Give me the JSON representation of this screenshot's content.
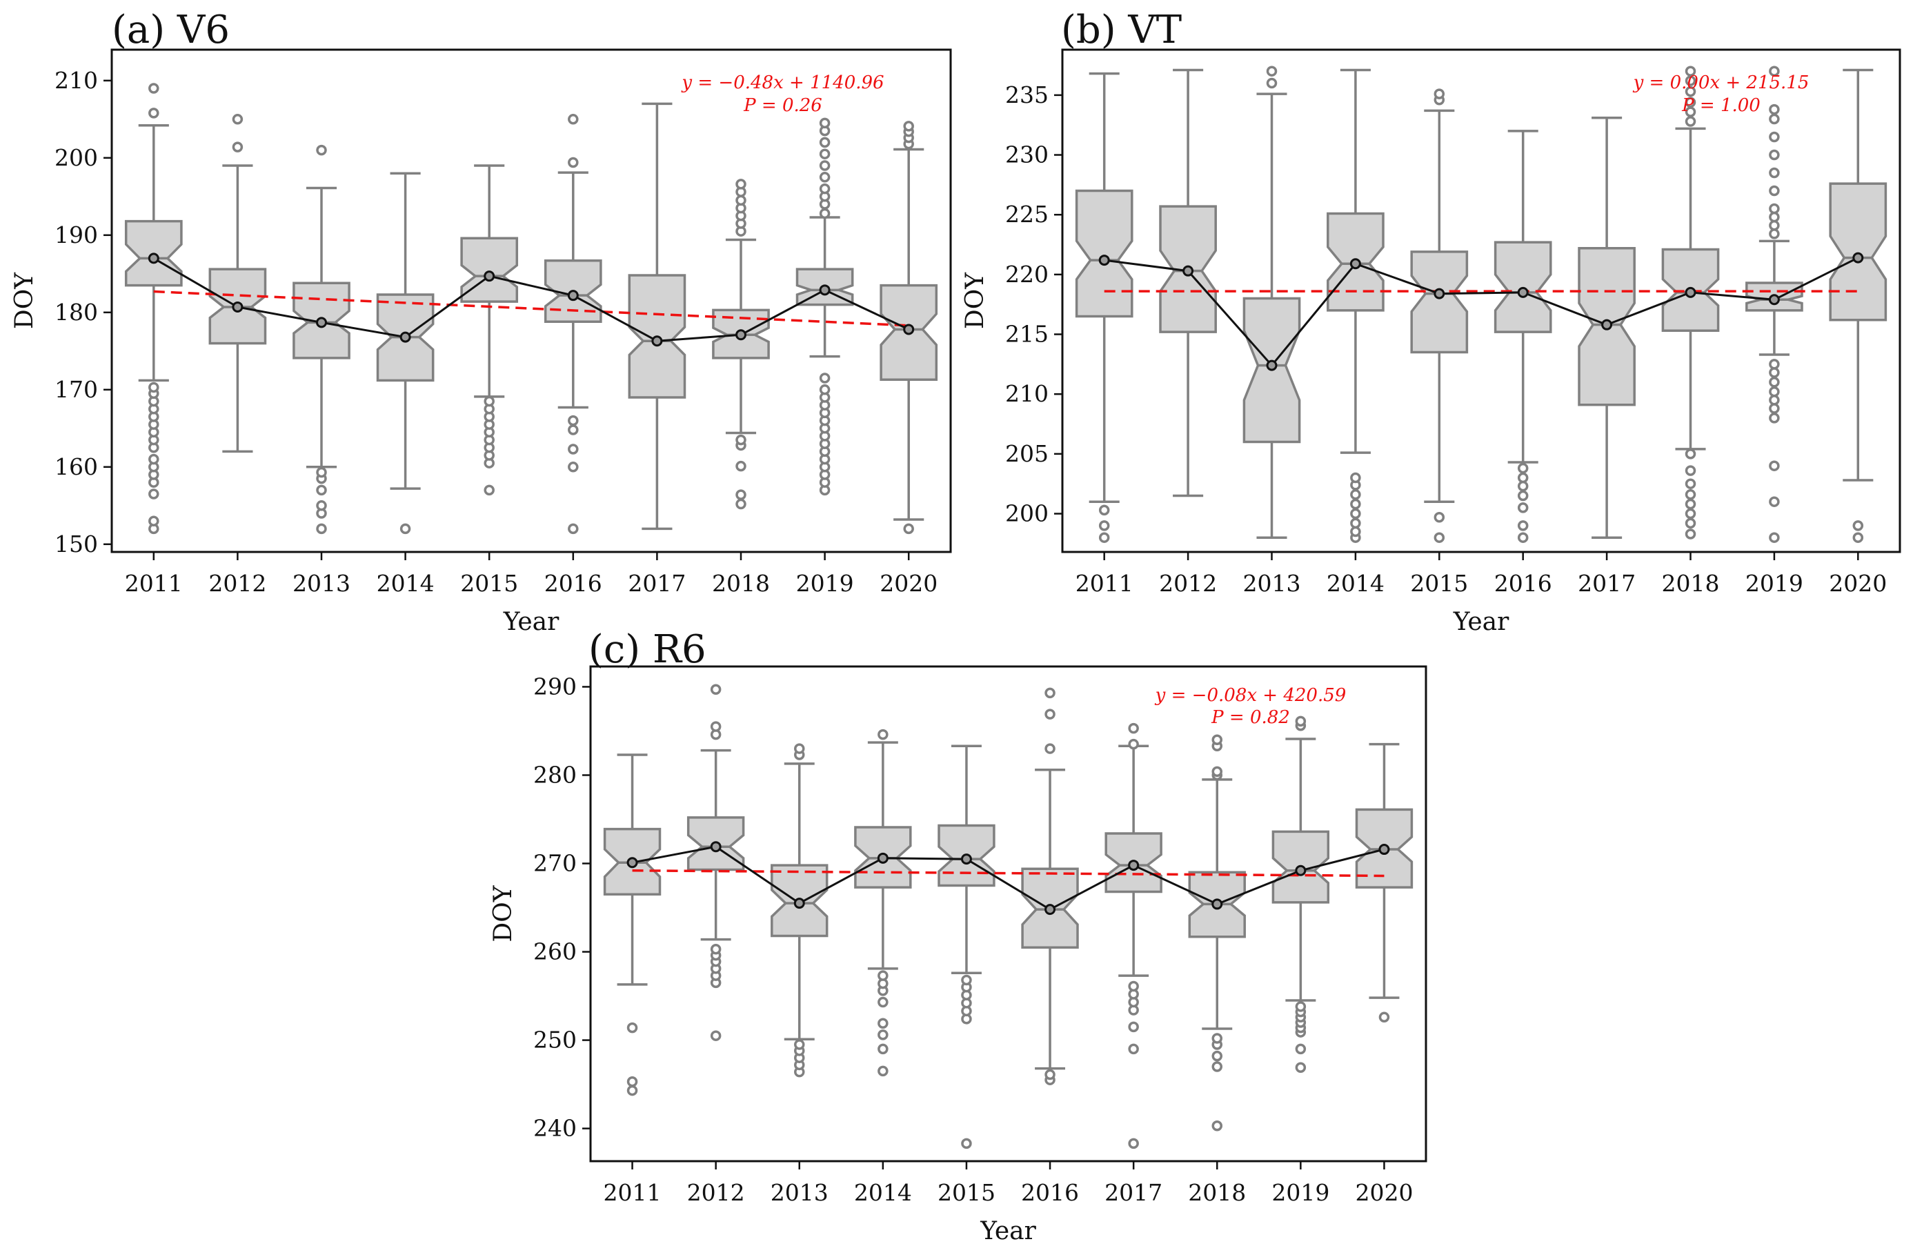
{
  "chart_data": [
    {
      "type": "box",
      "title": "(a) V6",
      "xlabel": "Year",
      "ylabel": "DOY",
      "categories": [
        "2011",
        "2012",
        "2013",
        "2014",
        "2015",
        "2016",
        "2017",
        "2018",
        "2019",
        "2020"
      ],
      "ylim": [
        149,
        214
      ],
      "yticks": [
        150,
        160,
        170,
        180,
        190,
        200,
        210
      ],
      "medians": [
        187,
        180.7,
        178.7,
        176.8,
        184.7,
        182.2,
        176.3,
        177.1,
        182.9,
        177.8
      ],
      "boxes": [
        {
          "q1": 183.5,
          "q3": 191.8,
          "whislo": 171.2,
          "whishi": 204.2,
          "notchlo": 185.3,
          "notchhi": 188.8,
          "fliers": [
            152,
            153,
            156.5,
            158,
            159,
            160,
            161,
            162.5,
            163.5,
            164.5,
            165.5,
            166.5,
            167.5,
            168.5,
            169.5,
            170.3,
            205.8,
            209
          ]
        },
        {
          "q1": 176,
          "q3": 185.6,
          "whislo": 162,
          "whishi": 199,
          "notchlo": 179.3,
          "notchhi": 182.1,
          "fliers": [
            201.4,
            205
          ]
        },
        {
          "q1": 174.1,
          "q3": 183.8,
          "whislo": 160,
          "whishi": 196.1,
          "notchlo": 177.3,
          "notchhi": 180.2,
          "fliers": [
            152,
            154,
            155,
            157,
            158.5,
            159.3,
            201
          ]
        },
        {
          "q1": 171.2,
          "q3": 182.3,
          "whislo": 157.2,
          "whishi": 198,
          "notchlo": 175.2,
          "notchhi": 178.5,
          "fliers": [
            152
          ]
        },
        {
          "q1": 181.4,
          "q3": 189.6,
          "whislo": 169.1,
          "whishi": 199,
          "notchlo": 183.3,
          "notchhi": 186.1,
          "fliers": [
            157,
            160.5,
            161.5,
            162.5,
            163.5,
            164.5,
            165.5,
            166.5,
            167.5,
            168.5
          ]
        },
        {
          "q1": 178.8,
          "q3": 186.7,
          "whislo": 167.7,
          "whishi": 198.1,
          "notchlo": 180.8,
          "notchhi": 183.6,
          "fliers": [
            152,
            160,
            162.3,
            164.8,
            166,
            199.4,
            205
          ]
        },
        {
          "q1": 169,
          "q3": 184.8,
          "whislo": 152,
          "whishi": 207,
          "notchlo": 174.5,
          "notchhi": 178.1,
          "fliers": []
        },
        {
          "q1": 174.1,
          "q3": 180.3,
          "whislo": 164.4,
          "whishi": 189.4,
          "notchlo": 176.2,
          "notchhi": 178,
          "fliers": [
            155.2,
            156.4,
            160.1,
            162.8,
            163.5,
            190.5,
            191.5,
            192.5,
            193.5,
            194.5,
            195.6,
            196.6
          ]
        },
        {
          "q1": 181,
          "q3": 185.6,
          "whislo": 174.3,
          "whishi": 192.3,
          "notchlo": 182.3,
          "notchhi": 183.5,
          "fliers": [
            157,
            158,
            159,
            160,
            161,
            162,
            163,
            164,
            165,
            166,
            167,
            168,
            169,
            170,
            171.5,
            192.8,
            194,
            195,
            196,
            197.5,
            199,
            200.5,
            202,
            203.5,
            204.5
          ]
        },
        {
          "q1": 171.3,
          "q3": 183.5,
          "whislo": 153.2,
          "whishi": 201.1,
          "notchlo": 175.8,
          "notchhi": 179.8,
          "fliers": [
            152,
            201.8,
            202.6,
            203.4,
            204.1
          ]
        }
      ],
      "mean_line": [
        187,
        180.7,
        178.7,
        176.8,
        184.7,
        182.2,
        176.3,
        177.1,
        182.9,
        177.8
      ],
      "trend": {
        "start": 182.7,
        "end": 178.3
      },
      "annotation": [
        "y = −0.48x + 1140.96",
        "P = 0.26"
      ]
    },
    {
      "type": "box",
      "title": "(b) VT",
      "xlabel": "Year",
      "ylabel": "DOY",
      "categories": [
        "2011",
        "2012",
        "2013",
        "2014",
        "2015",
        "2016",
        "2017",
        "2018",
        "2019",
        "2020"
      ],
      "ylim": [
        196.8,
        238.8
      ],
      "yticks": [
        200,
        205,
        210,
        215,
        220,
        225,
        230,
        235
      ],
      "medians": [
        221.2,
        220.3,
        212.4,
        220.9,
        218.4,
        218.5,
        215.8,
        218.5,
        217.9,
        221.4
      ],
      "boxes": [
        {
          "q1": 216.5,
          "q3": 227,
          "whislo": 201,
          "whishi": 236.8,
          "notchlo": 219.6,
          "notchhi": 222.8,
          "fliers": [
            198,
            199,
            200.3
          ]
        },
        {
          "q1": 215.2,
          "q3": 225.7,
          "whislo": 201.5,
          "whishi": 237.1,
          "notchlo": 218.6,
          "notchhi": 222,
          "fliers": []
        },
        {
          "q1": 206,
          "q3": 218,
          "whislo": 198,
          "whishi": 235.1,
          "notchlo": 209.5,
          "notchhi": 215.3,
          "fliers": [
            236,
            237
          ]
        },
        {
          "q1": 217,
          "q3": 225.1,
          "whislo": 205.1,
          "whishi": 237.1,
          "notchlo": 219.5,
          "notchhi": 222.3,
          "fliers": [
            198,
            198.5,
            199.2,
            200,
            200.8,
            201.6,
            202.4,
            203
          ]
        },
        {
          "q1": 213.5,
          "q3": 221.9,
          "whislo": 201,
          "whishi": 233.7,
          "notchlo": 216.9,
          "notchhi": 219.9,
          "fliers": [
            198,
            199.7,
            234.6,
            235.1
          ]
        },
        {
          "q1": 215.2,
          "q3": 222.7,
          "whislo": 204.3,
          "whishi": 232,
          "notchlo": 217,
          "notchhi": 220,
          "fliers": [
            198,
            199,
            200.5,
            201.5,
            202.3,
            203,
            203.8
          ]
        },
        {
          "q1": 209.1,
          "q3": 222.2,
          "whislo": 198,
          "whishi": 233.1,
          "notchlo": 214,
          "notchhi": 217.6,
          "fliers": []
        },
        {
          "q1": 215.3,
          "q3": 222.1,
          "whislo": 205.4,
          "whishi": 232.2,
          "notchlo": 217.4,
          "notchhi": 219.6,
          "fliers": [
            198.3,
            199.2,
            200,
            200.8,
            201.6,
            202.5,
            203.6,
            205,
            232.8,
            233.6,
            234.4,
            235.3,
            236.2,
            237
          ]
        },
        {
          "q1": 217,
          "q3": 219.3,
          "whislo": 213.3,
          "whishi": 222.8,
          "notchlo": 217.6,
          "notchhi": 218.2,
          "fliers": [
            198,
            201,
            204,
            208,
            208.8,
            209.5,
            210.2,
            211,
            211.8,
            212.5,
            223.4,
            224.1,
            224.8,
            225.5,
            227,
            228.5,
            230,
            231.5,
            233,
            233.8,
            237
          ]
        },
        {
          "q1": 216.2,
          "q3": 227.6,
          "whislo": 202.8,
          "whishi": 237.1,
          "notchlo": 219.6,
          "notchhi": 223.2,
          "fliers": [
            198,
            199
          ]
        }
      ],
      "mean_line": [
        221.2,
        220.3,
        212.4,
        220.9,
        218.4,
        218.5,
        215.8,
        218.5,
        217.9,
        221.4
      ],
      "trend": {
        "start": 218.6,
        "end": 218.6
      },
      "annotation": [
        "y = 0.00x + 215.15",
        "P = 1.00"
      ]
    },
    {
      "type": "box",
      "title": "(c) R6",
      "xlabel": "Year",
      "ylabel": "DOY",
      "categories": [
        "2011",
        "2012",
        "2013",
        "2014",
        "2015",
        "2016",
        "2017",
        "2018",
        "2019",
        "2020"
      ],
      "ylim": [
        236.3,
        292.3
      ],
      "yticks": [
        240,
        250,
        260,
        270,
        280,
        290
      ],
      "medians": [
        270.1,
        271.9,
        265.5,
        270.6,
        270.5,
        264.8,
        269.8,
        265.4,
        269.2,
        271.6
      ],
      "boxes": [
        {
          "q1": 266.5,
          "q3": 273.9,
          "whislo": 256.3,
          "whishi": 282.3,
          "notchlo": 268.5,
          "notchhi": 271.6,
          "fliers": [
            244.3,
            245.3,
            251.4
          ]
        },
        {
          "q1": 269.3,
          "q3": 275.2,
          "whislo": 261.4,
          "whishi": 282.8,
          "notchlo": 270.6,
          "notchhi": 273.2,
          "fliers": [
            250.5,
            256.5,
            257.3,
            258.1,
            258.9,
            259.6,
            260.3,
            284.6,
            285.5,
            289.7
          ]
        },
        {
          "q1": 261.8,
          "q3": 269.8,
          "whislo": 250.1,
          "whishi": 281.3,
          "notchlo": 264,
          "notchhi": 267,
          "fliers": [
            246.4,
            247.2,
            248,
            248.8,
            249.5,
            282.3,
            283
          ]
        },
        {
          "q1": 267.3,
          "q3": 274.1,
          "whislo": 258.1,
          "whishi": 283.7,
          "notchlo": 269.2,
          "notchhi": 272,
          "fliers": [
            246.5,
            249,
            250.6,
            251.9,
            254.3,
            255.6,
            256.4,
            257.3,
            284.6
          ]
        },
        {
          "q1": 267.5,
          "q3": 274.3,
          "whislo": 257.6,
          "whishi": 283.3,
          "notchlo": 269.1,
          "notchhi": 271.9,
          "fliers": [
            238.3,
            252.4,
            253.3,
            254.2,
            255.1,
            256,
            256.8
          ]
        },
        {
          "q1": 260.5,
          "q3": 269.4,
          "whislo": 246.8,
          "whishi": 280.6,
          "notchlo": 263.1,
          "notchhi": 266.5,
          "fliers": [
            245.5,
            246.1,
            283,
            286.9,
            289.3
          ]
        },
        {
          "q1": 266.8,
          "q3": 273.4,
          "whislo": 257.3,
          "whishi": 283.3,
          "notchlo": 268.6,
          "notchhi": 271,
          "fliers": [
            238.3,
            249,
            251.5,
            253.4,
            254.3,
            255.2,
            256.1,
            283.5,
            285.3
          ]
        },
        {
          "q1": 261.7,
          "q3": 269,
          "whislo": 251.3,
          "whishi": 279.5,
          "notchlo": 264.1,
          "notchhi": 266.7,
          "fliers": [
            240.3,
            247,
            248.2,
            249.5,
            250.2,
            280,
            280.4,
            283.3,
            284
          ]
        },
        {
          "q1": 265.6,
          "q3": 273.6,
          "whislo": 254.5,
          "whishi": 284.1,
          "notchlo": 267.8,
          "notchhi": 270.6,
          "fliers": [
            246.9,
            249,
            250.9,
            251.4,
            252,
            252.6,
            253.2,
            253.8,
            285.6,
            286.1
          ]
        },
        {
          "q1": 267.3,
          "q3": 276.1,
          "whislo": 254.8,
          "whishi": 283.5,
          "notchlo": 270.2,
          "notchhi": 273,
          "fliers": [
            252.6
          ]
        }
      ],
      "mean_line": [
        270.1,
        271.9,
        265.5,
        270.6,
        270.5,
        264.8,
        269.8,
        265.4,
        269.2,
        271.6
      ],
      "trend": {
        "start": 269.2,
        "end": 268.6
      },
      "annotation": [
        "y = −0.08x + 420.59",
        "P = 0.82"
      ]
    }
  ],
  "colors": {
    "box_fill": "#d3d3d3",
    "box_edge": "#808080",
    "mean_line": "#111111",
    "trend_line": "#ee1111",
    "annotation": "#ee1111"
  }
}
